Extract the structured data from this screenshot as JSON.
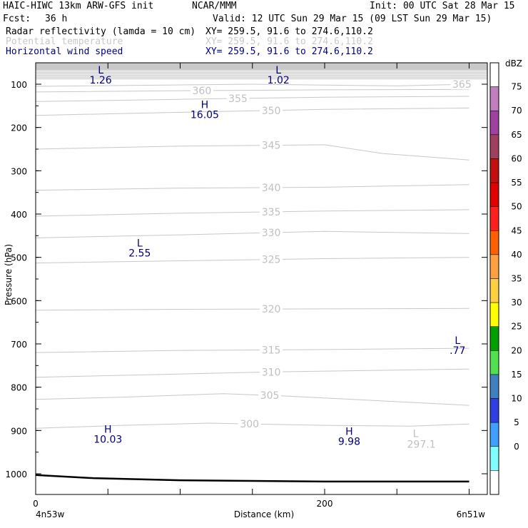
{
  "header": {
    "model": "HAIC-HIWC 13km ARW-GFS init",
    "org": "NCAR/MMM",
    "init": "Init: 00 UTC Sat 28 Mar 15",
    "fcst_label": "Fcst:",
    "fcst_value": "36 h",
    "valid": "Valid: 12 UTC Sun 29 Mar 15 (09 LST Sun 29 Mar 15)",
    "fields": [
      {
        "name": "Radar reflectivity (lamda = 10 cm)",
        "xy": "XY= 259.5, 91.6 to 274.6,110.2",
        "color": "#000000"
      },
      {
        "name": "Potential temperature",
        "xy": "XY= 259.5, 91.6 to 274.6,110.2",
        "color": "#c8c8c8"
      },
      {
        "name": "Horizontal wind speed",
        "xy": "XY= 259.5, 91.6 to 274.6,110.2",
        "color": "#000080"
      }
    ]
  },
  "chart_data": {
    "type": "contour-cross-section",
    "xlabel": "Distance (km)",
    "ylabel": "Pressure (hPa)",
    "xlim": [
      0,
      300
    ],
    "ylim": [
      1050,
      50
    ],
    "x_ticks": [
      0,
      200
    ],
    "y_ticks": [
      100,
      200,
      300,
      400,
      500,
      600,
      700,
      800,
      900,
      1000
    ],
    "x_endpoints": {
      "left": "4n53w",
      "right": "6n51w"
    },
    "theta_contours": [
      {
        "value": 300,
        "label": "300",
        "label_x": 148,
        "points": [
          [
            0,
            895
          ],
          [
            60,
            888
          ],
          [
            120,
            883
          ],
          [
            150,
            885
          ],
          [
            200,
            888
          ],
          [
            260,
            890
          ],
          [
            300,
            885
          ]
        ]
      },
      {
        "value": 305,
        "label": "305",
        "label_x": 162,
        "points": [
          [
            0,
            828
          ],
          [
            60,
            823
          ],
          [
            130,
            815
          ],
          [
            170,
            820
          ],
          [
            230,
            830
          ],
          [
            300,
            842
          ]
        ]
      },
      {
        "value": 310,
        "label": "310",
        "label_x": 163,
        "points": [
          [
            0,
            777
          ],
          [
            80,
            771
          ],
          [
            160,
            765
          ],
          [
            240,
            761
          ],
          [
            300,
            758
          ]
        ]
      },
      {
        "value": 315,
        "label": "315",
        "label_x": 163,
        "points": [
          [
            0,
            720
          ],
          [
            100,
            715
          ],
          [
            200,
            713
          ],
          [
            300,
            710
          ]
        ]
      },
      {
        "value": 320,
        "label": "320",
        "label_x": 163,
        "points": [
          [
            0,
            622
          ],
          [
            100,
            620
          ],
          [
            200,
            619
          ],
          [
            300,
            618
          ]
        ]
      },
      {
        "value": 325,
        "label": "325",
        "label_x": 163,
        "points": [
          [
            0,
            513
          ],
          [
            100,
            508
          ],
          [
            200,
            503
          ],
          [
            300,
            500
          ]
        ]
      },
      {
        "value": 330,
        "label": "330",
        "label_x": 163,
        "points": [
          [
            0,
            455
          ],
          [
            100,
            448
          ],
          [
            200,
            440
          ],
          [
            300,
            445
          ]
        ]
      },
      {
        "value": 335,
        "label": "335",
        "label_x": 163,
        "points": [
          [
            0,
            405
          ],
          [
            100,
            398
          ],
          [
            200,
            393
          ],
          [
            300,
            390
          ]
        ]
      },
      {
        "value": 340,
        "label": "340",
        "label_x": 163,
        "points": [
          [
            0,
            345
          ],
          [
            100,
            340
          ],
          [
            200,
            338
          ],
          [
            300,
            332
          ]
        ]
      },
      {
        "value": 345,
        "label": "345",
        "label_x": 163,
        "points": [
          [
            0,
            250
          ],
          [
            100,
            243
          ],
          [
            200,
            240
          ],
          [
            240,
            260
          ],
          [
            300,
            275
          ]
        ]
      },
      {
        "value": 350,
        "label": "350",
        "label_x": 163,
        "points": [
          [
            0,
            172
          ],
          [
            100,
            165
          ],
          [
            200,
            158
          ],
          [
            300,
            155
          ]
        ]
      },
      {
        "value": 355,
        "label": "355",
        "label_x": 140,
        "points": [
          [
            0,
            140
          ],
          [
            100,
            135
          ],
          [
            200,
            130
          ],
          [
            300,
            128
          ]
        ]
      },
      {
        "value": 360,
        "label": "360",
        "label_x": 115,
        "points": [
          [
            0,
            118
          ],
          [
            100,
            115
          ],
          [
            200,
            113
          ],
          [
            300,
            112
          ]
        ]
      },
      {
        "value": 365,
        "label": "365",
        "label_x": 295,
        "points": [
          [
            0,
            105
          ],
          [
            150,
            100
          ],
          [
            250,
            104
          ],
          [
            300,
            100
          ]
        ]
      }
    ],
    "wind_extrema": [
      {
        "type": "L",
        "value": "1.26",
        "x": 45,
        "p": 75
      },
      {
        "type": "L",
        "value": "1.02",
        "x": 168,
        "p": 75
      },
      {
        "type": "H",
        "value": "16.05",
        "x": 117,
        "p": 155
      },
      {
        "type": "L",
        "value": "2.55",
        "x": 72,
        "p": 475
      },
      {
        "type": "L",
        "value": ".77",
        "x": 292,
        "p": 700
      },
      {
        "type": "H",
        "value": "10.03",
        "x": 50,
        "p": 905
      },
      {
        "type": "H",
        "value": "9.98",
        "x": 217,
        "p": 910
      }
    ],
    "theta_extrema": [
      {
        "type": "L",
        "value": "297.1",
        "x": 263,
        "p": 955
      }
    ],
    "ground_line": [
      [
        0,
        1003
      ],
      [
        40,
        1010
      ],
      [
        100,
        1015
      ],
      [
        200,
        1018
      ],
      [
        300,
        1018
      ]
    ],
    "colorbar": {
      "unit": "dBZ",
      "levels": [
        "75",
        "70",
        "65",
        "60",
        "55",
        "50",
        "45",
        "40",
        "35",
        "30",
        "25",
        "20",
        "15",
        "10",
        "5",
        "0"
      ],
      "colors": [
        "#ffffff",
        "#c080c0",
        "#a040a0",
        "#a04060",
        "#c01010",
        "#e00000",
        "#ff2020",
        "#ff6000",
        "#ffa040",
        "#ffd040",
        "#ffff00",
        "#00a000",
        "#50e050",
        "#4080c0",
        "#3040e0",
        "#40a0ff",
        "#80ffff",
        "#ffffff"
      ]
    }
  }
}
